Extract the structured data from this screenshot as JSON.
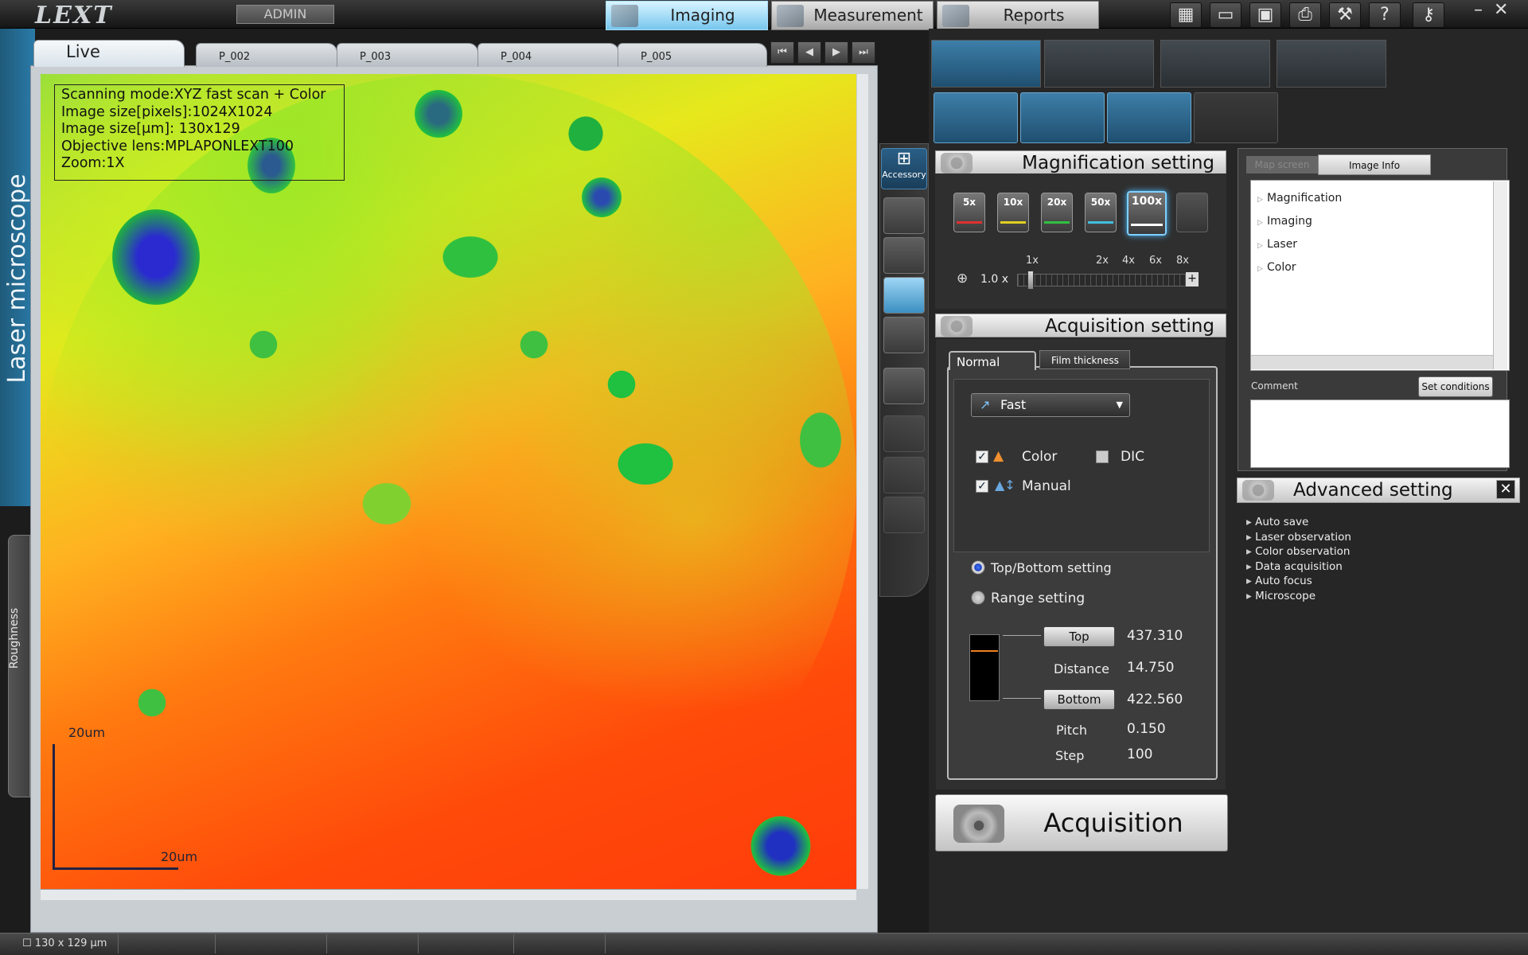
{
  "app": {
    "logo": "LEXT",
    "user_button": "ADMIN"
  },
  "main_tabs": [
    {
      "label": "Imaging",
      "active": true
    },
    {
      "label": "Measurement",
      "active": false
    },
    {
      "label": "Reports",
      "active": false
    }
  ],
  "side": {
    "title": "Laser microscope",
    "secondary_tab": "Roughness"
  },
  "view_tabs": [
    {
      "label": "Live",
      "active": true
    },
    {
      "label": "P_002"
    },
    {
      "label": "P_003"
    },
    {
      "label": "P_004"
    },
    {
      "label": "P_005"
    }
  ],
  "image_info": {
    "lines": [
      "Scanning mode:XYZ fast scan + Color",
      "Image size[pixels]:1024X1024",
      "Image size[μm]: 130x129",
      "Objective lens:MPLAPONLEXT100",
      "Zoom:1X"
    ]
  },
  "scale_bar": {
    "vertical_label": "20um",
    "horizontal_label": "20um"
  },
  "status_bar": {
    "size_text": "130 x 129 μm"
  },
  "accessory": {
    "label": "Accessory"
  },
  "magnification": {
    "title": "Magnification setting",
    "objectives": [
      {
        "label": "5x",
        "color": "#e03030"
      },
      {
        "label": "10x",
        "color": "#e0d020"
      },
      {
        "label": "20x",
        "color": "#30c040"
      },
      {
        "label": "50x",
        "color": "#40c0e0"
      },
      {
        "label": "100x",
        "color": "#ffffff",
        "selected": true
      }
    ],
    "zoom_marks": [
      "1x",
      "2x",
      "4x",
      "6x",
      "8x"
    ],
    "zoom_value": "1.0",
    "zoom_unit": "x"
  },
  "acquisition": {
    "title": "Acquisition setting",
    "tabs": [
      "Normal",
      "Film thickness"
    ],
    "speed": "Fast",
    "options": [
      {
        "label": "Color",
        "checked": true
      },
      {
        "label": "DIC",
        "checked": false
      },
      {
        "label": "Manual",
        "checked": true
      }
    ],
    "modes": [
      {
        "label": "Top/Bottom setting",
        "selected": true
      },
      {
        "label": "Range setting",
        "selected": false
      }
    ],
    "top_label": "Top",
    "top_value": "437.310",
    "distance_label": "Distance",
    "distance_value": "14.750",
    "bottom_label": "Bottom",
    "bottom_value": "422.560",
    "pitch_label": "Pitch",
    "pitch_value": "0.150",
    "step_label": "Step",
    "step_value": "100",
    "button": "Acquisition"
  },
  "info_panel": {
    "tabs": [
      "Map screen",
      "Image Info"
    ],
    "tree": [
      "Magnification",
      "Imaging",
      "Laser",
      "Color"
    ],
    "comment_label": "Comment",
    "set_conditions": "Set conditions"
  },
  "advanced": {
    "title": "Advanced setting",
    "close": "✕",
    "items": [
      "Auto save",
      "Laser observation",
      "Color observation",
      "Data acquisition",
      "Auto focus",
      "Microscope"
    ]
  }
}
